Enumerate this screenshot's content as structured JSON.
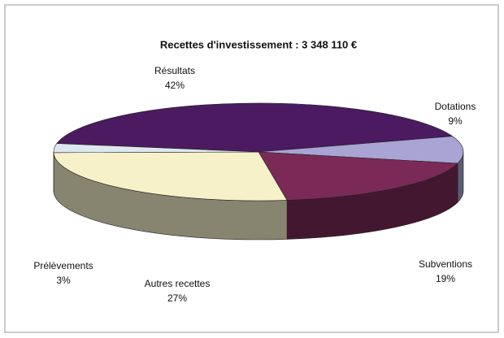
{
  "chart_data": {
    "type": "pie3d",
    "title": "Recettes d'investissement : 3 348 110 €",
    "categories": [
      "Résultats",
      "Dotations",
      "Subventions",
      "Autres recettes",
      "Prélèvements"
    ],
    "values": [
      42,
      9,
      19,
      27,
      3
    ],
    "value_labels": [
      "42%",
      "9%",
      "19%",
      "27%",
      "3%"
    ],
    "colors": [
      "#4b1a60",
      "#a9a4d3",
      "#7b2a58",
      "#f6f1c9",
      "#dde7f0"
    ]
  }
}
